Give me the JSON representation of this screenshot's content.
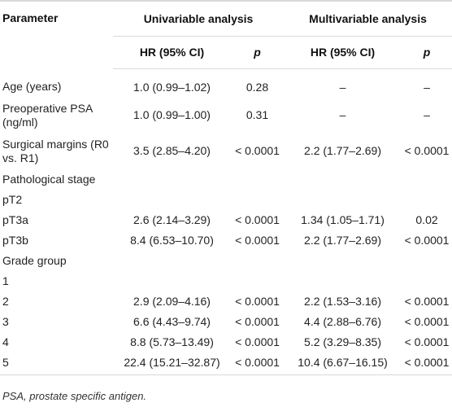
{
  "header": {
    "parameter": "Parameter",
    "univariable": "Univariable analysis",
    "multivariable": "Multivariable analysis",
    "hr_label": "HR (95% CI)",
    "p_label": "p"
  },
  "rows": [
    {
      "label": "Age (years)",
      "uni_hr": "1.0 (0.99–1.02)",
      "uni_p": "0.28",
      "multi_hr": "–",
      "multi_p": "–"
    },
    {
      "label": "Preoperative PSA (ng/ml)",
      "uni_hr": "1.0 (0.99–1.00)",
      "uni_p": "0.31",
      "multi_hr": "–",
      "multi_p": "–"
    },
    {
      "label": "Surgical margins (R0 vs. R1)",
      "uni_hr": "3.5 (2.85–4.20)",
      "uni_p": "< 0.0001",
      "multi_hr": "2.2 (1.77–2.69)",
      "multi_p": "< 0.0001"
    },
    {
      "label": "Pathological stage",
      "uni_hr": "",
      "uni_p": "",
      "multi_hr": "",
      "multi_p": ""
    },
    {
      "label": "pT2",
      "uni_hr": "",
      "uni_p": "",
      "multi_hr": "",
      "multi_p": ""
    },
    {
      "label": "pT3a",
      "uni_hr": "2.6 (2.14–3.29)",
      "uni_p": "< 0.0001",
      "multi_hr": "1.34 (1.05–1.71)",
      "multi_p": "0.02"
    },
    {
      "label": "pT3b",
      "uni_hr": "8.4 (6.53–10.70)",
      "uni_p": "< 0.0001",
      "multi_hr": "2.2 (1.77–2.69)",
      "multi_p": "< 0.0001"
    },
    {
      "label": "Grade group",
      "uni_hr": "",
      "uni_p": "",
      "multi_hr": "",
      "multi_p": ""
    },
    {
      "label": "1",
      "uni_hr": "",
      "uni_p": "",
      "multi_hr": "",
      "multi_p": ""
    },
    {
      "label": "2",
      "uni_hr": "2.9 (2.09–4.16)",
      "uni_p": "< 0.0001",
      "multi_hr": "2.2 (1.53–3.16)",
      "multi_p": "< 0.0001"
    },
    {
      "label": "3",
      "uni_hr": "6.6 (4.43–9.74)",
      "uni_p": "< 0.0001",
      "multi_hr": "4.4 (2.88–6.76)",
      "multi_p": "< 0.0001"
    },
    {
      "label": "4",
      "uni_hr": "8.8 (5.73–13.49)",
      "uni_p": "< 0.0001",
      "multi_hr": "5.2 (3.29–8.35)",
      "multi_p": "< 0.0001"
    },
    {
      "label": "5",
      "uni_hr": "22.4 (15.21–32.87)",
      "uni_p": "< 0.0001",
      "multi_hr": "10.4 (6.67–16.15)",
      "multi_p": "< 0.0001"
    }
  ],
  "footnote": "PSA, prostate specific antigen."
}
